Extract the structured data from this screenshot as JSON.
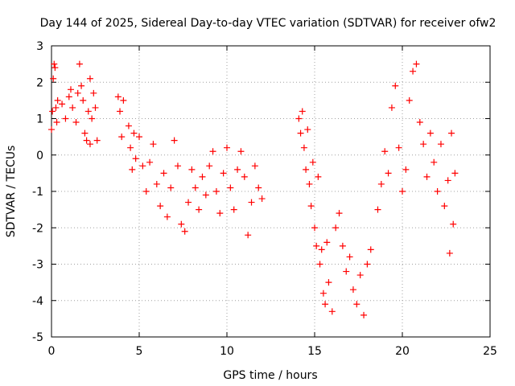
{
  "chart_data": {
    "type": "scatter",
    "title": "Day 144 of 2025, Sidereal Day-to-day VTEC variation (SDTVAR) for receiver ofw2",
    "xlabel": "GPS time / hours",
    "ylabel": "SDTVAR / TECUs",
    "xlim": [
      0,
      25
    ],
    "ylim": [
      -5,
      3
    ],
    "xticks": [
      0,
      5,
      10,
      15,
      20,
      25
    ],
    "yticks": [
      -5,
      -4,
      -3,
      -2,
      -1,
      0,
      1,
      2,
      3
    ],
    "grid": true,
    "marker": "plus",
    "color": "#ff0000",
    "series": [
      {
        "points": [
          [
            0.0,
            0.7
          ],
          [
            0.05,
            1.2
          ],
          [
            0.1,
            2.1
          ],
          [
            0.15,
            2.5
          ],
          [
            0.2,
            2.4
          ],
          [
            0.25,
            1.3
          ],
          [
            0.3,
            0.9
          ],
          [
            0.35,
            1.5
          ],
          [
            0.6,
            1.4
          ],
          [
            0.8,
            1.0
          ],
          [
            1.0,
            1.6
          ],
          [
            1.1,
            1.8
          ],
          [
            1.2,
            1.3
          ],
          [
            1.4,
            0.9
          ],
          [
            1.5,
            1.7
          ],
          [
            1.6,
            2.5
          ],
          [
            1.7,
            1.9
          ],
          [
            1.8,
            1.5
          ],
          [
            1.9,
            0.6
          ],
          [
            2.0,
            0.4
          ],
          [
            2.1,
            1.2
          ],
          [
            2.2,
            0.3
          ],
          [
            2.3,
            1.0
          ],
          [
            2.4,
            1.7
          ],
          [
            2.5,
            1.3
          ],
          [
            2.6,
            0.4
          ],
          [
            2.2,
            2.1
          ],
          [
            3.8,
            1.6
          ],
          [
            3.9,
            1.2
          ],
          [
            4.0,
            0.5
          ],
          [
            4.1,
            1.5
          ],
          [
            4.4,
            0.8
          ],
          [
            4.5,
            0.2
          ],
          [
            4.6,
            -0.4
          ],
          [
            4.7,
            0.6
          ],
          [
            4.8,
            -0.1
          ],
          [
            5.0,
            0.5
          ],
          [
            5.2,
            -0.3
          ],
          [
            5.4,
            -1.0
          ],
          [
            5.6,
            -0.2
          ],
          [
            5.8,
            0.3
          ],
          [
            6.0,
            -0.8
          ],
          [
            6.2,
            -1.4
          ],
          [
            6.4,
            -0.5
          ],
          [
            6.6,
            -1.7
          ],
          [
            6.8,
            -0.9
          ],
          [
            7.0,
            0.4
          ],
          [
            7.2,
            -0.3
          ],
          [
            7.4,
            -1.9
          ],
          [
            7.6,
            -2.1
          ],
          [
            7.8,
            -1.3
          ],
          [
            8.0,
            -0.4
          ],
          [
            8.2,
            -0.9
          ],
          [
            8.4,
            -1.5
          ],
          [
            8.6,
            -0.6
          ],
          [
            8.8,
            -1.1
          ],
          [
            9.0,
            -0.3
          ],
          [
            9.2,
            0.1
          ],
          [
            9.4,
            -1.0
          ],
          [
            9.6,
            -1.6
          ],
          [
            9.8,
            -0.5
          ],
          [
            10.0,
            0.2
          ],
          [
            10.2,
            -0.9
          ],
          [
            10.4,
            -1.5
          ],
          [
            10.6,
            -0.4
          ],
          [
            10.8,
            0.1
          ],
          [
            11.0,
            -0.6
          ],
          [
            11.2,
            -2.2
          ],
          [
            11.4,
            -1.3
          ],
          [
            11.6,
            -0.3
          ],
          [
            11.8,
            -0.9
          ],
          [
            12.0,
            -1.2
          ],
          [
            14.1,
            1.0
          ],
          [
            14.2,
            0.6
          ],
          [
            14.3,
            1.2
          ],
          [
            14.4,
            0.2
          ],
          [
            14.5,
            -0.4
          ],
          [
            14.6,
            0.7
          ],
          [
            14.7,
            -0.8
          ],
          [
            14.8,
            -1.4
          ],
          [
            14.9,
            -0.2
          ],
          [
            15.0,
            -2.0
          ],
          [
            15.1,
            -2.5
          ],
          [
            15.2,
            -0.6
          ],
          [
            15.3,
            -3.0
          ],
          [
            15.4,
            -2.6
          ],
          [
            15.5,
            -3.8
          ],
          [
            15.6,
            -4.1
          ],
          [
            15.7,
            -2.4
          ],
          [
            15.8,
            -3.5
          ],
          [
            16.0,
            -4.3
          ],
          [
            16.2,
            -2.0
          ],
          [
            16.4,
            -1.6
          ],
          [
            16.6,
            -2.5
          ],
          [
            16.8,
            -3.2
          ],
          [
            17.0,
            -2.8
          ],
          [
            17.2,
            -3.7
          ],
          [
            17.4,
            -4.1
          ],
          [
            17.6,
            -3.3
          ],
          [
            17.8,
            -4.4
          ],
          [
            18.0,
            -3.0
          ],
          [
            18.2,
            -2.6
          ],
          [
            18.6,
            -1.5
          ],
          [
            18.8,
            -0.8
          ],
          [
            19.0,
            0.1
          ],
          [
            19.2,
            -0.5
          ],
          [
            19.4,
            1.3
          ],
          [
            19.6,
            1.9
          ],
          [
            19.8,
            0.2
          ],
          [
            20.0,
            -1.0
          ],
          [
            20.2,
            -0.4
          ],
          [
            20.4,
            1.5
          ],
          [
            20.6,
            2.3
          ],
          [
            20.8,
            2.5
          ],
          [
            21.0,
            0.9
          ],
          [
            21.2,
            0.3
          ],
          [
            21.4,
            -0.6
          ],
          [
            21.6,
            0.6
          ],
          [
            21.8,
            -0.2
          ],
          [
            22.0,
            -1.0
          ],
          [
            22.2,
            0.3
          ],
          [
            22.4,
            -1.4
          ],
          [
            22.6,
            -0.7
          ],
          [
            22.8,
            0.6
          ],
          [
            23.0,
            -0.5
          ],
          [
            22.7,
            -2.7
          ],
          [
            22.9,
            -1.9
          ]
        ]
      }
    ]
  }
}
